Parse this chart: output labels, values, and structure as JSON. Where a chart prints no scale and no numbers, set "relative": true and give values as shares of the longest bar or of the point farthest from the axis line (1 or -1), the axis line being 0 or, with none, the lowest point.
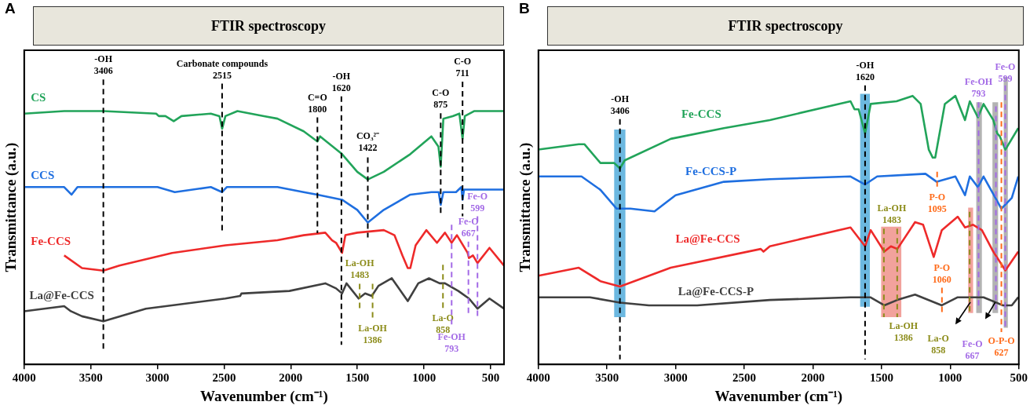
{
  "chart_data": [
    {
      "type": "line",
      "title": "FTIR spectroscopy",
      "xlabel": "Wavenumber (cm⁻¹)",
      "ylabel": "Transmittance (a.u.)",
      "relative": true,
      "xlim": [
        4000,
        400
      ],
      "xticks": [
        4000,
        3500,
        3000,
        2500,
        2000,
        1500,
        1000,
        500
      ],
      "annotations": [
        "A"
      ],
      "series": [
        {
          "name": "CS",
          "color": "#22a45a",
          "x": [
            4000,
            3700,
            3406,
            3010,
            2990,
            2940,
            2878,
            2820,
            2600,
            2535,
            2515,
            2490,
            2400,
            2200,
            2100,
            1903,
            1800,
            1780,
            1615,
            1501,
            1422,
            1302,
            1103,
            945,
            892,
            875,
            855,
            785,
            735,
            711,
            694,
            622,
            400
          ],
          "values": [
            0.99,
            1,
            1,
            0.99,
            0.98,
            0.98,
            0.96,
            0.98,
            0.99,
            0.98,
            0.93,
            0.98,
            1,
            0.98,
            0.97,
            0.92,
            0.88,
            0.9,
            0.83,
            0.76,
            0.73,
            0.76,
            0.83,
            0.9,
            0.86,
            0.78,
            0.97,
            0.98,
            0.99,
            0.89,
            0.98,
            1,
            1
          ]
        },
        {
          "name": "CCS",
          "color": "#1f6fe0",
          "x": [
            4000,
            3700,
            3645,
            3600,
            3400,
            3000,
            2870,
            2600,
            2515,
            2480,
            2100,
            1903,
            1800,
            1615,
            1501,
            1422,
            1302,
            1103,
            945,
            890,
            875,
            855,
            760,
            720,
            711,
            700,
            400
          ],
          "values": [
            0.7,
            0.7,
            0.67,
            0.7,
            0.7,
            0.7,
            0.68,
            0.7,
            0.68,
            0.7,
            0.7,
            0.68,
            0.67,
            0.65,
            0.61,
            0.56,
            0.61,
            0.67,
            0.68,
            0.68,
            0.63,
            0.68,
            0.68,
            0.7,
            0.65,
            0.69,
            0.69
          ]
        },
        {
          "name": "Fe-CCS",
          "color": "#ee2a2a",
          "x": [
            3700,
            3566,
            3406,
            3285,
            2890,
            2490,
            2100,
            1903,
            1741,
            1690,
            1660,
            1615,
            1590,
            1501,
            1302,
            1222,
            1162,
            1122,
            1103,
            1063,
            983,
            903,
            843,
            793,
            753,
            673,
            663,
            633,
            599,
            509,
            400
          ],
          "values": [
            0.43,
            0.38,
            0.37,
            0.39,
            0.44,
            0.47,
            0.49,
            0.51,
            0.52,
            0.49,
            0.48,
            0.44,
            0.51,
            0.52,
            0.53,
            0.51,
            0.43,
            0.38,
            0.38,
            0.47,
            0.53,
            0.48,
            0.52,
            0.48,
            0.51,
            0.44,
            0.42,
            0.43,
            0.4,
            0.46,
            0.39
          ]
        },
        {
          "name": "La@Fe-CCS",
          "color": "#404040",
          "x": [
            4000,
            3700,
            3650,
            3566,
            3406,
            3087,
            2490,
            2380,
            2370,
            2010,
            1741,
            1660,
            1615,
            1582,
            1491,
            1442,
            1392,
            1342,
            1242,
            1122,
            1043,
            963,
            883,
            843,
            743,
            663,
            599,
            509,
            400
          ],
          "values": [
            0.21,
            0.23,
            0.21,
            0.19,
            0.17,
            0.22,
            0.26,
            0.27,
            0.28,
            0.29,
            0.32,
            0.3,
            0.28,
            0.32,
            0.26,
            0.28,
            0.27,
            0.31,
            0.34,
            0.25,
            0.32,
            0.34,
            0.32,
            0.32,
            0.29,
            0.26,
            0.22,
            0.26,
            0.22
          ]
        }
      ],
      "ref_lines": [
        {
          "axis": "x",
          "value": 3406,
          "label": "-OH\n3406",
          "color": "#000000",
          "line_style": "dashed"
        },
        {
          "axis": "x",
          "value": 2515,
          "label": "Carbonate compounds\n2515",
          "color": "#000000",
          "line_style": "dashed"
        },
        {
          "axis": "x",
          "value": 1800,
          "label": "C=O\n1800",
          "color": "#000000",
          "line_style": "dashed"
        },
        {
          "axis": "x",
          "value": 1620,
          "label": "-OH\n1620",
          "color": "#000000",
          "line_style": "dashed"
        },
        {
          "axis": "x",
          "value": 1422,
          "label": "CO₃²⁻\n1422",
          "color": "#000000",
          "line_style": "dashed"
        },
        {
          "axis": "x",
          "value": 875,
          "label": "C-O\n875",
          "color": "#000000",
          "line_style": "dashed"
        },
        {
          "axis": "x",
          "value": 711,
          "label": "C-O\n711",
          "color": "#000000",
          "line_style": "dashed"
        },
        {
          "axis": "x",
          "value": 1483,
          "label": "La-OH\n1483",
          "color": "#8c8c1a",
          "line_style": "dashed"
        },
        {
          "axis": "x",
          "value": 1386,
          "label": "La-OH\n1386",
          "color": "#8c8c1a",
          "line_style": "dashed"
        },
        {
          "axis": "x",
          "value": 858,
          "label": "La-O\n858",
          "color": "#8c8c1a",
          "line_style": "dashed"
        },
        {
          "axis": "x",
          "value": 793,
          "label": "Fe-OH\n793",
          "color": "#a36ae6",
          "line_style": "dashed"
        },
        {
          "axis": "x",
          "value": 667,
          "label": "Fe-O\n667",
          "color": "#a36ae6",
          "line_style": "dashed"
        },
        {
          "axis": "x",
          "value": 599,
          "label": "Fe-O\n599",
          "color": "#a36ae6",
          "line_style": "dashed"
        }
      ]
    },
    {
      "type": "line",
      "title": "FTIR spectroscopy",
      "xlabel": "Wavenumber (cm⁻¹)",
      "ylabel": "Transmittance (a.u.)",
      "relative": true,
      "xlim": [
        4000,
        500
      ],
      "xticks": [
        4000,
        3500,
        3000,
        2500,
        2000,
        1500,
        1000,
        500
      ],
      "annotations": [
        "B"
      ],
      "series": [
        {
          "name": "Fe-CCS",
          "color": "#22a45a",
          "x": [
            4000,
            3706,
            3665,
            3548,
            3448,
            3406,
            3371,
            3036,
            2649,
            2314,
            1726,
            1697,
            1667,
            1620,
            1579,
            1391,
            1274,
            1215,
            1156,
            1127,
            1109,
            1039,
            962,
            892,
            857,
            798,
            757,
            686,
            657,
            639,
            598,
            504
          ],
          "values": [
            0.8,
            0.82,
            0.82,
            0.75,
            0.75,
            0.73,
            0.76,
            0.84,
            0.88,
            0.91,
            0.98,
            0.95,
            0.95,
            0.86,
            0.97,
            0.98,
            1,
            0.97,
            0.8,
            0.77,
            0.77,
            0.97,
            1,
            0.91,
            0.98,
            0.92,
            0.97,
            0.91,
            0.86,
            0.85,
            0.8,
            0.88
          ]
        },
        {
          "name": "Fe-CCS-P",
          "color": "#1f6fe0",
          "x": [
            4000,
            3686,
            3548,
            3430,
            3330,
            3154,
            3001,
            2649,
            2314,
            1726,
            1620,
            1532,
            1180,
            1098,
            962,
            892,
            857,
            798,
            757,
            627,
            551,
            504
          ],
          "values": [
            0.7,
            0.7,
            0.65,
            0.58,
            0.58,
            0.57,
            0.63,
            0.68,
            0.69,
            0.7,
            0.67,
            0.7,
            0.71,
            0.68,
            0.7,
            0.63,
            0.7,
            0.66,
            0.7,
            0.58,
            0.62,
            0.7
          ]
        },
        {
          "name": "La@Fe-CCS",
          "color": "#ee2a2a",
          "x": [
            4000,
            3706,
            3548,
            3406,
            3036,
            2380,
            2360,
            2314,
            1726,
            1620,
            1579,
            1480,
            1432,
            1385,
            1256,
            1197,
            1120,
            1061,
            945,
            892,
            833,
            769,
            686,
            598,
            504
          ],
          "values": [
            0.33,
            0.36,
            0.31,
            0.29,
            0.36,
            0.43,
            0.42,
            0.44,
            0.51,
            0.44,
            0.5,
            0.42,
            0.44,
            0.43,
            0.53,
            0.52,
            0.4,
            0.5,
            0.55,
            0.51,
            0.52,
            0.5,
            0.42,
            0.35,
            0.42
          ]
        },
        {
          "name": "La@Fe-CCS-P",
          "color": "#404040",
          "x": [
            4000,
            3624,
            3406,
            3195,
            2843,
            2314,
            1726,
            1620,
            1582,
            1480,
            1385,
            1256,
            1061,
            945,
            757,
            616,
            551,
            504
          ],
          "values": [
            0.25,
            0.25,
            0.23,
            0.22,
            0.22,
            0.24,
            0.25,
            0.25,
            0.25,
            0.22,
            0.24,
            0.26,
            0.22,
            0.25,
            0.25,
            0.22,
            0.22,
            0.25
          ]
        }
      ],
      "ref_lines": [
        {
          "axis": "x",
          "value": 3406,
          "label": "-OH\n3406",
          "color": "#000000",
          "line_style": "dashed"
        },
        {
          "axis": "x",
          "value": 1620,
          "label": "-OH\n1620",
          "color": "#000000",
          "line_style": "dashed"
        },
        {
          "axis": "x",
          "value": 1483,
          "label": "La-OH\n1483",
          "color": "#8c8c1a",
          "line_style": "dashed"
        },
        {
          "axis": "x",
          "value": 1386,
          "label": "La-OH\n1386",
          "color": "#8c8c1a",
          "line_style": "dashed"
        },
        {
          "axis": "x",
          "value": 858,
          "label": "La-O\n858",
          "color": "#8c8c1a",
          "line_style": "dashed"
        },
        {
          "axis": "x",
          "value": 1095,
          "label": "P-O\n1095",
          "color": "#ff6b1a",
          "line_style": "dashed"
        },
        {
          "axis": "x",
          "value": 1060,
          "label": "P-O\n1060",
          "color": "#ff6b1a",
          "line_style": "dashed"
        },
        {
          "axis": "x",
          "value": 627,
          "label": "O-P-O\n627",
          "color": "#ff6b1a",
          "line_style": "dashed"
        },
        {
          "axis": "x",
          "value": 793,
          "label": "Fe-OH\n793",
          "color": "#a36ae6",
          "line_style": "dashed"
        },
        {
          "axis": "x",
          "value": 667,
          "label": "Fe-O\n667",
          "color": "#a36ae6",
          "line_style": "dashed"
        },
        {
          "axis": "x",
          "value": 599,
          "label": "Fe-O\n599",
          "color": "#a36ae6",
          "line_style": "dashed"
        }
      ],
      "bands": [
        {
          "axis": "x",
          "from": 3448,
          "to": 3366,
          "color": "#6cb8e0"
        },
        {
          "axis": "x",
          "from": 1656,
          "to": 1585,
          "color": "#6cb8e0"
        },
        {
          "axis": "x",
          "from": 1503,
          "to": 1356,
          "color": "#f2a29c"
        },
        {
          "axis": "x",
          "from": 869,
          "to": 833,
          "color": "#f2a29c"
        },
        {
          "axis": "x",
          "from": 810,
          "to": 769,
          "color": "#b3b3b3"
        },
        {
          "axis": "x",
          "from": 692,
          "to": 651,
          "color": "#b3b3b3"
        },
        {
          "axis": "x",
          "from": 610,
          "to": 580,
          "color": "#b3b3b3"
        }
      ]
    }
  ]
}
